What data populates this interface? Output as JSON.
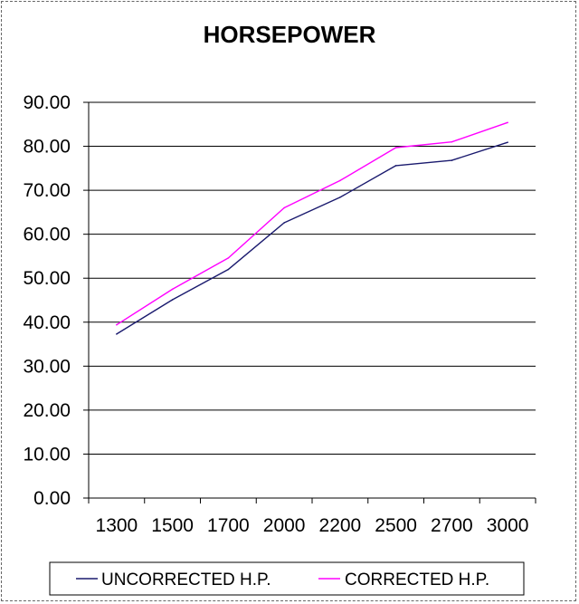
{
  "chart_data": {
    "type": "line",
    "title": "HORSEPOWER",
    "xlabel": "",
    "ylabel": "",
    "categories": [
      "1300",
      "1500",
      "1700",
      "2000",
      "2200",
      "2500",
      "2700",
      "3000"
    ],
    "series": [
      {
        "name": "UNCORRECTED H.P.",
        "color": "#1a1a6e",
        "values": [
          37.3,
          45.1,
          52.0,
          62.6,
          68.4,
          75.6,
          76.8,
          80.9
        ]
      },
      {
        "name": "CORRECTED H.P.",
        "color": "#ff00ff",
        "values": [
          39.4,
          47.5,
          54.6,
          66.0,
          72.2,
          79.7,
          81.0,
          85.4
        ]
      }
    ],
    "ylim": [
      0,
      90
    ],
    "ytick_step": 10,
    "ytick_labels": [
      "0.00",
      "10.00",
      "20.00",
      "30.00",
      "40.00",
      "50.00",
      "60.00",
      "70.00",
      "80.00",
      "90.00"
    ],
    "grid": true,
    "legend_position": "bottom"
  }
}
